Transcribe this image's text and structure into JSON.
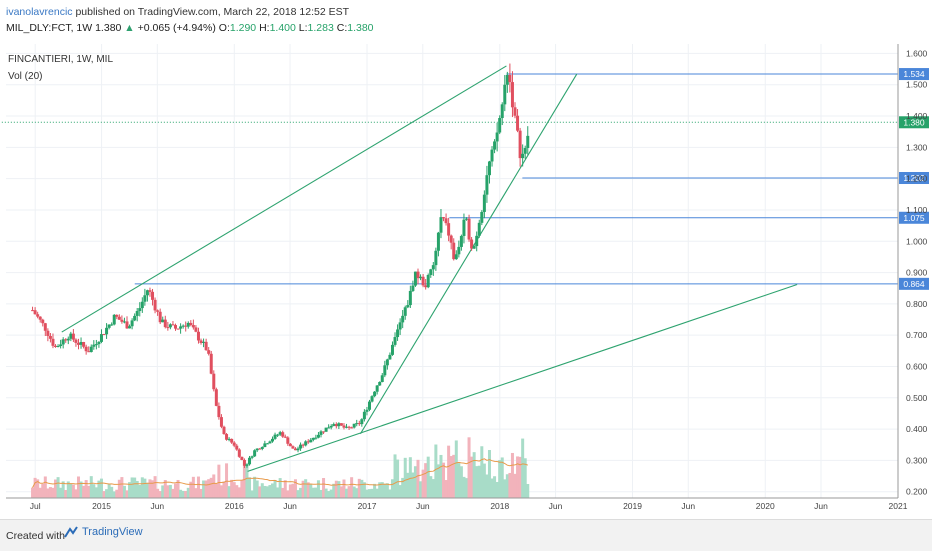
{
  "header": {
    "user": "ivanolavrencic",
    "published": " published on TradingView.com, March 22, 2018 12:52 EST",
    "symbol": "MIL_DLY:FCT, 1W",
    "last": "1.380",
    "change": "+0.065 (+4.94%)",
    "o_label": "O:",
    "o": "1.290",
    "h_label": "H:",
    "h": "1.400",
    "l_label": "L:",
    "l": "1.283",
    "c_label": "C:",
    "c": "1.380"
  },
  "footer": {
    "created": "Created with",
    "brand": "TradingView"
  },
  "colors": {
    "up": "#26a269",
    "down": "#e04f5f",
    "volUp": "#a8dcc8",
    "volDown": "#f2b3bb",
    "hline": "#4a86d9",
    "trend": "#2ea36f",
    "grid": "#eef1f5"
  },
  "chart_data": {
    "type": "candlestick",
    "title": "FINCANTIERI, 1W, MIL",
    "indicator": "Vol (20)",
    "ylim": [
      0.18,
      1.63
    ],
    "yticks": [
      "0.200",
      "0.300",
      "0.400",
      "0.500",
      "0.600",
      "0.700",
      "0.800",
      "0.900",
      "1.000",
      "1.100",
      "1.200",
      "1.300",
      "1.400",
      "1.500",
      "1.600"
    ],
    "xticks": [
      {
        "label": "Jul",
        "t": 2014.5
      },
      {
        "label": "2015",
        "t": 2015.0
      },
      {
        "label": "Jun",
        "t": 2015.42
      },
      {
        "label": "2016",
        "t": 2016.0
      },
      {
        "label": "Jun",
        "t": 2016.42
      },
      {
        "label": "2017",
        "t": 2017.0
      },
      {
        "label": "Jun",
        "t": 2017.42
      },
      {
        "label": "2018",
        "t": 2018.0
      },
      {
        "label": "Jun",
        "t": 2018.42
      },
      {
        "label": "2019",
        "t": 2019.0
      },
      {
        "label": "Jun",
        "t": 2019.42
      },
      {
        "label": "2020",
        "t": 2020.0
      },
      {
        "label": "Jun",
        "t": 2020.42
      },
      {
        "label": "2021",
        "t": 2021.0
      }
    ],
    "hlines": [
      {
        "value": 1.534,
        "label": "1.534",
        "from": 2018.05
      },
      {
        "value": 1.38,
        "label": "1.380",
        "from": 2014.0,
        "dotted": true,
        "color": "#26a269"
      },
      {
        "value": 1.202,
        "label": "1.202",
        "from": 2018.17
      },
      {
        "value": 1.075,
        "label": "1.075",
        "from": 2017.62
      },
      {
        "value": 0.864,
        "label": "0.864",
        "from": 2015.25
      }
    ],
    "trendlines": [
      {
        "t1": 2014.7,
        "p1": 0.71,
        "t2": 2018.05,
        "p2": 1.56
      },
      {
        "t1": 2016.1,
        "p1": 0.265,
        "t2": 2020.24,
        "p2": 0.862
      },
      {
        "t1": 2016.95,
        "p1": 0.385,
        "t2": 2018.58,
        "p2": 1.534
      }
    ],
    "series_anchors": [
      [
        2014.48,
        0.78
      ],
      [
        2014.58,
        0.72
      ],
      [
        2014.65,
        0.66
      ],
      [
        2014.75,
        0.7
      ],
      [
        2014.9,
        0.65
      ],
      [
        2015.0,
        0.7
      ],
      [
        2015.1,
        0.76
      ],
      [
        2015.2,
        0.73
      ],
      [
        2015.28,
        0.78
      ],
      [
        2015.35,
        0.85
      ],
      [
        2015.45,
        0.74
      ],
      [
        2015.55,
        0.72
      ],
      [
        2015.65,
        0.74
      ],
      [
        2015.75,
        0.68
      ],
      [
        2015.8,
        0.65
      ],
      [
        2015.86,
        0.48
      ],
      [
        2015.92,
        0.38
      ],
      [
        2016.0,
        0.35
      ],
      [
        2016.08,
        0.28
      ],
      [
        2016.15,
        0.33
      ],
      [
        2016.25,
        0.36
      ],
      [
        2016.35,
        0.39
      ],
      [
        2016.45,
        0.33
      ],
      [
        2016.55,
        0.36
      ],
      [
        2016.65,
        0.39
      ],
      [
        2016.75,
        0.42
      ],
      [
        2016.85,
        0.4
      ],
      [
        2016.95,
        0.42
      ],
      [
        2017.05,
        0.52
      ],
      [
        2017.12,
        0.58
      ],
      [
        2017.22,
        0.7
      ],
      [
        2017.32,
        0.82
      ],
      [
        2017.36,
        0.9
      ],
      [
        2017.44,
        0.86
      ],
      [
        2017.5,
        0.92
      ],
      [
        2017.56,
        1.08
      ],
      [
        2017.62,
        1.02
      ],
      [
        2017.66,
        0.93
      ],
      [
        2017.74,
        1.07
      ],
      [
        2017.8,
        0.97
      ],
      [
        2017.86,
        1.1
      ],
      [
        2017.91,
        1.23
      ],
      [
        2017.96,
        1.3
      ],
      [
        2018.02,
        1.44
      ],
      [
        2018.06,
        1.56
      ],
      [
        2018.12,
        1.37
      ],
      [
        2018.16,
        1.27
      ],
      [
        2018.2,
        1.29
      ],
      [
        2018.22,
        1.38
      ]
    ]
  }
}
